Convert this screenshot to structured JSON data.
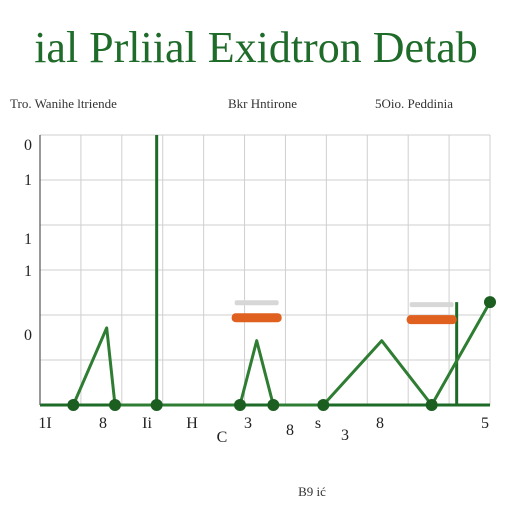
{
  "chart_data": {
    "type": "line",
    "title": "ial Prliial Exidtron Detab",
    "subtitles": [
      "Tro. Wanihe ltriende",
      "Bkr Hntirone",
      "5Oio. Peddinia"
    ],
    "x_tick_labels": [
      "1I",
      "8",
      "Ii",
      "H",
      "3",
      "C",
      "8",
      "s",
      "3",
      "8",
      "5"
    ],
    "y_tick_labels": [
      "0",
      "1",
      "1",
      "1",
      "0"
    ],
    "footer": "B9 ić",
    "grid": true,
    "colors": {
      "line": "#2e7d32",
      "markers": "#1b5e20",
      "highlight": "#e0611f",
      "grid": "#cfcfcf",
      "axis": "#1e6b27"
    },
    "series": [
      {
        "values": [
          [
            1,
            0
          ],
          [
            1.4,
            1.2
          ],
          [
            1.5,
            0
          ],
          [
            2.0,
            0
          ],
          [
            3,
            0
          ],
          [
            3.2,
            1.0
          ],
          [
            3.4,
            0
          ],
          [
            4,
            0
          ],
          [
            4.7,
            1.0
          ],
          [
            5.3,
            0
          ],
          [
            6,
            1.6
          ]
        ]
      }
    ],
    "ylim": [
      0,
      4.2
    ]
  }
}
